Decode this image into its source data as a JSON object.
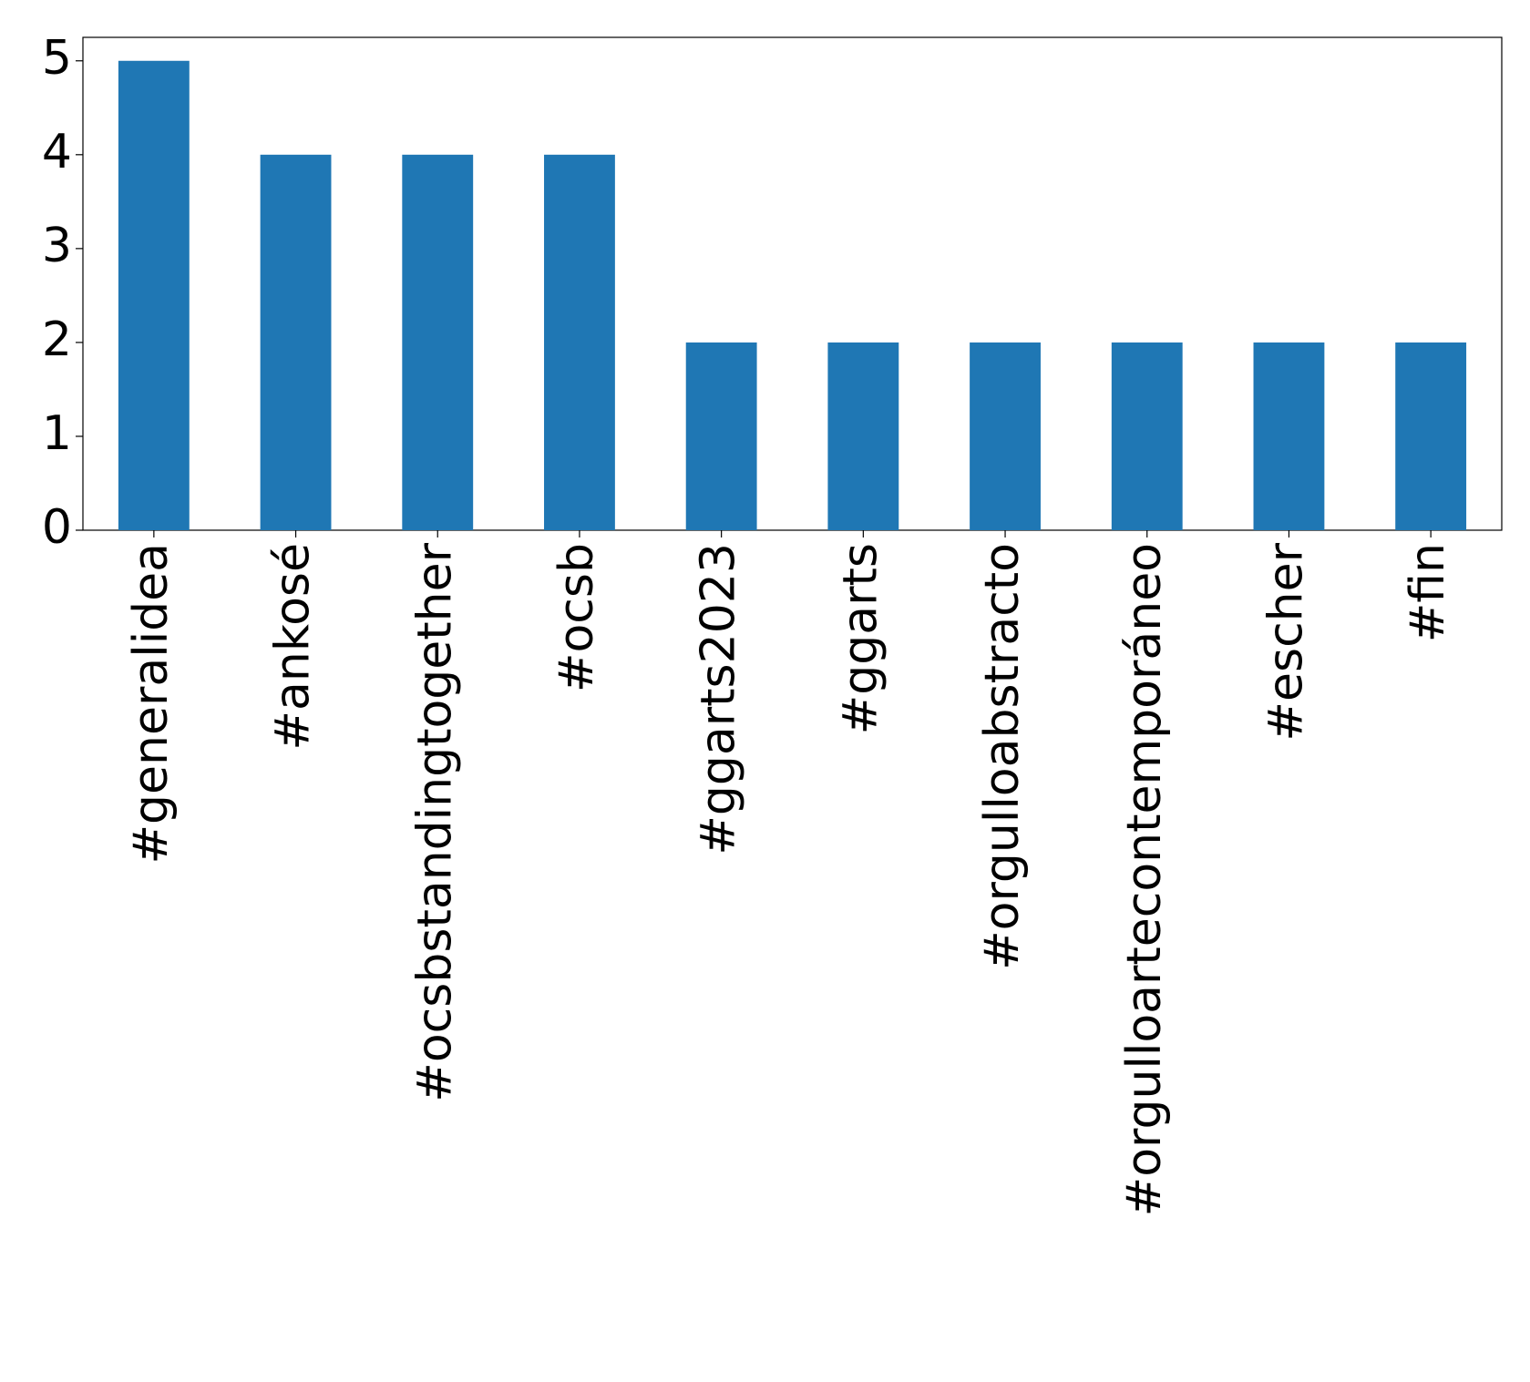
{
  "chart_data": {
    "type": "bar",
    "categories": [
      "#generalidea",
      "#ankosé",
      "#ocsbstandingtogether",
      "#ocsb",
      "#ggarts2023",
      "#ggarts",
      "#orgulloabstracto",
      "#orgulloartecontemporáneo",
      "#escher",
      "#fin"
    ],
    "values": [
      5,
      4,
      4,
      4,
      2,
      2,
      2,
      2,
      2,
      2
    ],
    "color": "#1f77b4",
    "ylim": [
      0,
      5.25
    ],
    "yticks": [
      0,
      1,
      2,
      3,
      4,
      5
    ],
    "grid": false
  }
}
